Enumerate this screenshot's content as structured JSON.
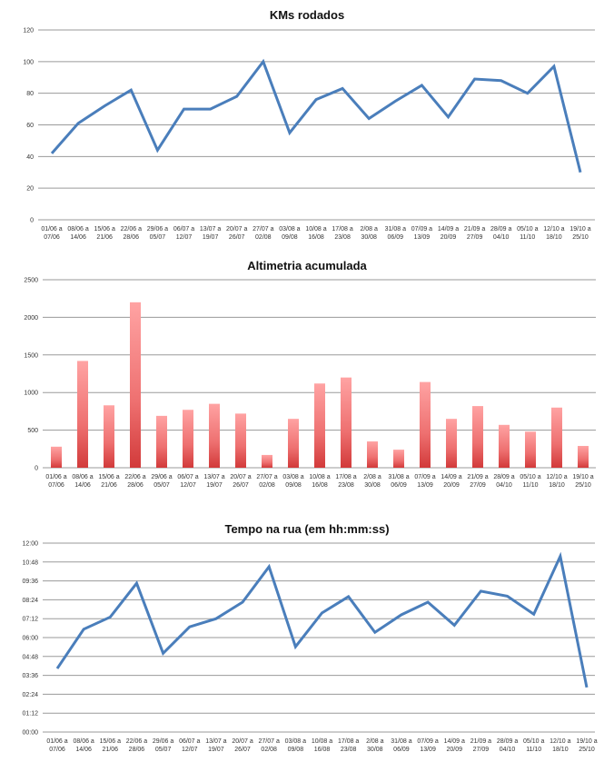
{
  "chart_data": [
    {
      "type": "line",
      "title": "KMs rodados",
      "ylim": [
        0,
        120
      ],
      "yticks": [
        "0",
        "20",
        "40",
        "60",
        "80",
        "100",
        "120"
      ],
      "categories": [
        [
          "01/06 a",
          "07/06"
        ],
        [
          "08/06 a",
          "14/06"
        ],
        [
          "15/06 a",
          "21/06"
        ],
        [
          "22/06 a",
          "28/06"
        ],
        [
          "29/06 a",
          "05/07"
        ],
        [
          "06/07 a",
          "12/07"
        ],
        [
          "13/07 a",
          "19/07"
        ],
        [
          "20/07 a",
          "26/07"
        ],
        [
          "27/07 a",
          "02/08"
        ],
        [
          "03/08 a",
          "09/08"
        ],
        [
          "10/08 a",
          "16/08"
        ],
        [
          "17/08 a",
          "23/08"
        ],
        [
          "2/08 a",
          "30/08"
        ],
        [
          "31/08 a",
          "06/09"
        ],
        [
          "07/09 a",
          "13/09"
        ],
        [
          "14/09 a",
          "20/09"
        ],
        [
          "21/09 a",
          "27/09"
        ],
        [
          "28/09 a",
          "04/10"
        ],
        [
          "05/10 a",
          "11/10"
        ],
        [
          "12/10 a",
          "18/10"
        ],
        [
          "19/10 a",
          "25/10"
        ]
      ],
      "values": [
        42,
        61,
        72,
        82,
        44,
        70,
        70,
        78,
        100,
        55,
        76,
        83,
        64,
        75,
        85,
        65,
        89,
        88,
        80,
        97,
        30
      ],
      "color": "#4a7ebb"
    },
    {
      "type": "bar",
      "title": "Altimetria acumulada",
      "ylim": [
        0,
        2500
      ],
      "yticks": [
        "0",
        "500",
        "1000",
        "1500",
        "2000",
        "2500"
      ],
      "values": [
        280,
        1420,
        830,
        2200,
        690,
        770,
        850,
        720,
        170,
        650,
        1120,
        1200,
        350,
        240,
        1140,
        650,
        820,
        570,
        480,
        800,
        290
      ],
      "color": "#e04848"
    },
    {
      "type": "line",
      "title": "Tempo na rua (em hh:mm:ss)",
      "ylim_minutes": [
        0,
        720
      ],
      "yticks": [
        "00:00",
        "01:12",
        "02:24",
        "03:36",
        "04:48",
        "06:00",
        "07:12",
        "08:24",
        "09:36",
        "10:48",
        "12:00"
      ],
      "values_minutes": [
        242,
        392,
        438,
        567,
        300,
        401,
        432,
        495,
        630,
        325,
        454,
        516,
        380,
        447,
        495,
        407,
        537,
        518,
        449,
        670,
        170
      ],
      "color": "#4a7ebb"
    }
  ]
}
